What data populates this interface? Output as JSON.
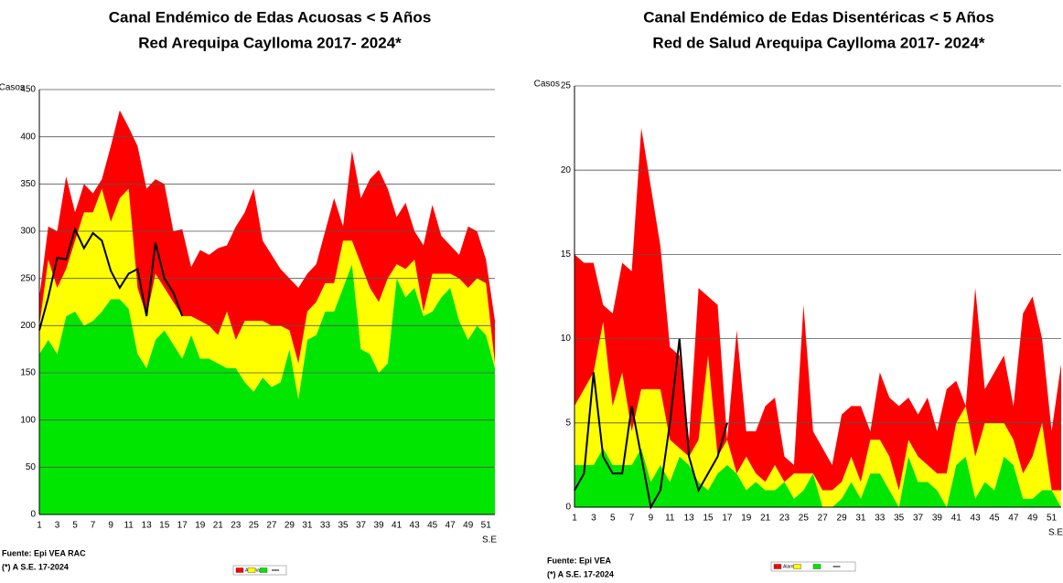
{
  "chart_data": [
    {
      "type": "area",
      "title": "Canal Endémico de Edas Acuosas  < 5 Años",
      "subtitle": "Red Arequipa Caylloma 2017- 2024*",
      "ylabel": "Casos",
      "xlabel": "S.E",
      "source": "Fuente: Epi VEA RAC",
      "note": "(*) A S.E. 17-2024",
      "categories": [
        1,
        null,
        3,
        null,
        5,
        null,
        7,
        null,
        9,
        null,
        11,
        null,
        13,
        null,
        15,
        null,
        17,
        null,
        19,
        null,
        21,
        null,
        23,
        null,
        25,
        null,
        27,
        null,
        29,
        null,
        31,
        null,
        33,
        null,
        35,
        null,
        37,
        null,
        39,
        null,
        41,
        null,
        43,
        null,
        45,
        null,
        47,
        null,
        49,
        null,
        51,
        null
      ],
      "ylim": [
        0,
        450
      ],
      "yticks": [
        0,
        50,
        100,
        150,
        200,
        250,
        300,
        350,
        400,
        450
      ],
      "grid": true,
      "series": [
        {
          "color": "#00e600",
          "values": [
            170,
            185,
            170,
            210,
            215,
            200,
            205,
            215,
            228,
            228,
            218,
            170,
            155,
            185,
            195,
            180,
            165,
            190,
            165,
            165,
            160,
            155,
            155,
            140,
            130,
            145,
            135,
            140,
            175,
            122,
            185,
            190,
            215,
            215,
            240,
            265,
            175,
            170,
            150,
            160,
            250,
            230,
            240,
            210,
            215,
            230,
            240,
            205,
            185,
            200,
            190,
            155
          ]
        },
        {
          "color": "#ffff00",
          "values": [
            30,
            85,
            70,
            50,
            75,
            120,
            115,
            130,
            82,
            107,
            127,
            70,
            55,
            70,
            45,
            45,
            45,
            20,
            40,
            35,
            30,
            60,
            30,
            65,
            75,
            60,
            65,
            60,
            20,
            38,
            30,
            35,
            30,
            30,
            50,
            25,
            90,
            70,
            75,
            90,
            15,
            30,
            30,
            5,
            40,
            25,
            15,
            45,
            55,
            50,
            55,
            5
          ]
        },
        {
          "name": "Alarma",
          "color": "#ff0000",
          "values": [
            30,
            35,
            60,
            98,
            30,
            30,
            20,
            10,
            80,
            93,
            65,
            150,
            135,
            100,
            110,
            75,
            92,
            52,
            75,
            75,
            92,
            70,
            120,
            115,
            140,
            85,
            75,
            60,
            55,
            80,
            40,
            40,
            55,
            90,
            15,
            95,
            70,
            115,
            140,
            95,
            50,
            70,
            30,
            70,
            73,
            40,
            30,
            25,
            65,
            50,
            25,
            45
          ]
        },
        {
          "type": "line",
          "color": "#000000",
          "values": [
            195,
            230,
            272,
            270,
            302,
            282,
            298,
            290,
            258,
            240,
            255,
            260,
            210,
            288,
            250,
            235,
            210,
            null,
            null,
            null,
            null,
            null,
            null,
            null,
            null,
            null,
            null,
            null,
            null,
            null,
            null,
            null,
            null,
            null,
            null,
            null,
            null,
            null,
            null,
            null,
            null,
            null,
            null,
            null,
            null,
            null,
            null,
            null,
            null,
            null,
            null,
            null
          ]
        }
      ]
    },
    {
      "type": "area",
      "title": "Canal Endémico de Edas Disentéricas  < 5 Años",
      "subtitle": "Red  de Salud Arequipa Caylloma 2017- 2024*",
      "ylabel": "Casos",
      "xlabel": "S.E",
      "source": "Fuente: Epi VEA",
      "note": "(*) A S.E. 17-2024",
      "categories": [
        1,
        null,
        3,
        null,
        5,
        null,
        7,
        null,
        9,
        null,
        11,
        null,
        13,
        null,
        15,
        null,
        17,
        null,
        19,
        null,
        21,
        null,
        23,
        null,
        25,
        null,
        27,
        null,
        29,
        null,
        31,
        null,
        33,
        null,
        35,
        null,
        37,
        null,
        39,
        null,
        41,
        null,
        43,
        null,
        45,
        null,
        47,
        null,
        49,
        null,
        51,
        null
      ],
      "ylim": [
        0,
        25
      ],
      "yticks": [
        0,
        5,
        10,
        15,
        20,
        25
      ],
      "grid": true,
      "series": [
        {
          "color": "#00e600",
          "values": [
            2.5,
            2.5,
            2.5,
            3.5,
            2.5,
            2.5,
            2.5,
            3.5,
            1.5,
            2.5,
            1.5,
            3,
            2.5,
            1.5,
            1,
            2,
            2.5,
            2,
            1,
            1.5,
            1,
            1,
            1.5,
            0.5,
            1,
            2,
            0,
            0,
            0.5,
            1.5,
            0.5,
            2,
            2,
            1,
            0,
            3,
            1.5,
            1.5,
            1,
            0,
            2.5,
            3,
            0.5,
            1.5,
            1,
            3,
            2.5,
            0.5,
            0.5,
            1,
            1,
            0
          ]
        },
        {
          "color": "#ffff00",
          "values": [
            3.5,
            4.5,
            5.5,
            7.5,
            3.5,
            5.5,
            2,
            3.5,
            5.5,
            4.5,
            2.5,
            0.5,
            0.5,
            2.5,
            8,
            1,
            1.5,
            0,
            2,
            0.5,
            0.5,
            1.5,
            0,
            1.5,
            1,
            0,
            1,
            1,
            1,
            1.5,
            1,
            2,
            2,
            2,
            1,
            1,
            1.5,
            1,
            1,
            2,
            2.5,
            3,
            2.5,
            3.5,
            4,
            2,
            1.5,
            1.5,
            2.5,
            4,
            0,
            1
          ]
        },
        {
          "name": "Alarma",
          "color": "#ff0000",
          "values": [
            9,
            7.5,
            6.5,
            1,
            5.5,
            6.5,
            9.5,
            15.5,
            12,
            8.5,
            5.5,
            5.5,
            1,
            9,
            3.5,
            9,
            0,
            8.5,
            1.5,
            2.5,
            4.5,
            4,
            1.5,
            0.5,
            10,
            2.5,
            2.5,
            1.5,
            4,
            3,
            4.5,
            0.5,
            4,
            3.5,
            5,
            2.5,
            2.5,
            4,
            2.5,
            5,
            2.5,
            0,
            10,
            2,
            3,
            4,
            2,
            9.5,
            9.5,
            5,
            3.5,
            7.5
          ]
        },
        {
          "type": "line",
          "color": "#000000",
          "values": [
            1,
            2,
            8,
            3,
            2,
            2,
            6,
            3,
            0,
            1,
            5,
            10,
            3,
            1,
            2,
            3,
            5,
            null,
            null,
            null,
            null,
            null,
            null,
            null,
            null,
            null,
            null,
            null,
            null,
            null,
            null,
            null,
            null,
            null,
            null,
            null,
            null,
            null,
            null,
            null,
            null,
            null,
            null,
            null,
            null,
            null,
            null,
            null,
            null,
            null,
            null,
            null
          ]
        }
      ]
    }
  ]
}
